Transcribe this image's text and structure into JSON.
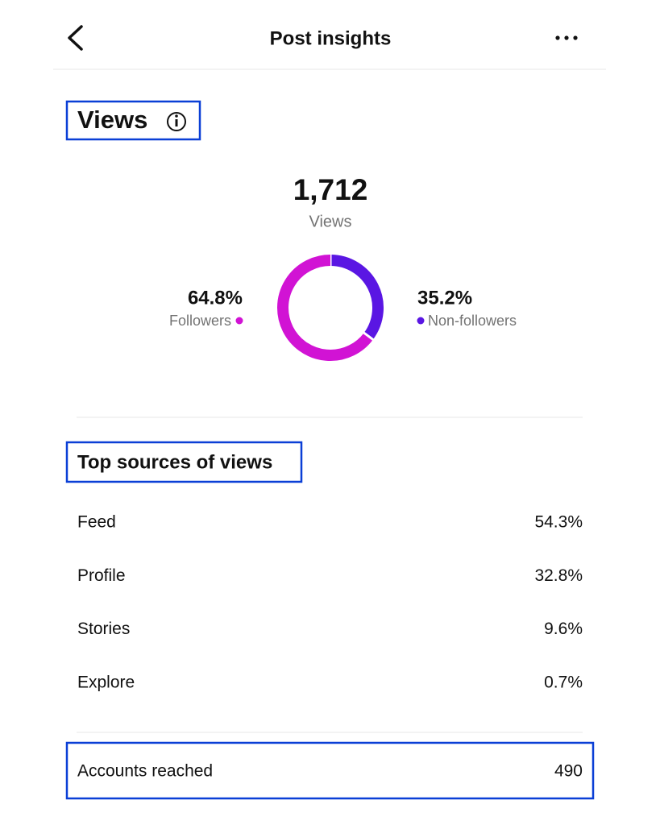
{
  "header": {
    "title": "Post insights"
  },
  "views": {
    "title": "Views",
    "total": "1,712",
    "total_label": "Views",
    "donut": {
      "segments": [
        {
          "name": "Followers",
          "value": 64.8,
          "value_label": "64.8%",
          "color": "#d113d4"
        },
        {
          "name": "Non-followers",
          "value": 35.2,
          "value_label": "35.2%",
          "color": "#5a16e3"
        }
      ]
    }
  },
  "sources": {
    "title": "Top sources of views",
    "rows": [
      [
        "Feed",
        "54.3%"
      ],
      [
        "Profile",
        "32.8%"
      ],
      [
        "Stories",
        "9.6%"
      ],
      [
        "Explore",
        "0.7%"
      ]
    ]
  },
  "reach": {
    "label": "Accounts reached",
    "value": "490"
  }
}
